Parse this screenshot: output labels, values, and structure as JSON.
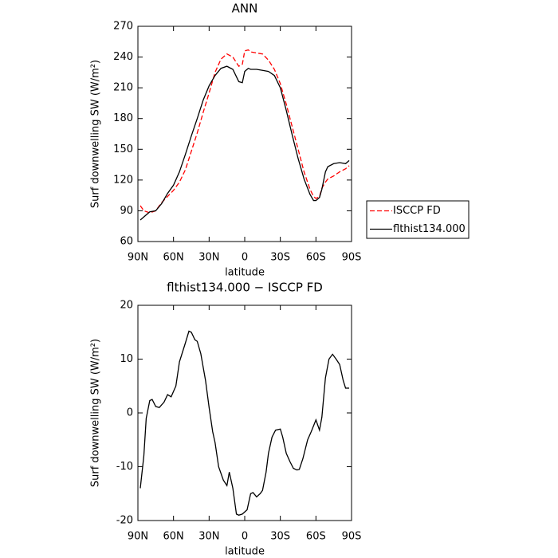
{
  "chart_data": [
    {
      "type": "line",
      "title": "ANN",
      "xlabel": "latitude",
      "ylabel": "Surf downwelling SW (W/m²)",
      "x": [
        88,
        85,
        80,
        75,
        70,
        65,
        60,
        55,
        50,
        45,
        40,
        35,
        30,
        25,
        20,
        15,
        10,
        5,
        2,
        0,
        -3,
        -5,
        -10,
        -15,
        -20,
        -25,
        -30,
        -35,
        -40,
        -45,
        -50,
        -55,
        -58,
        -60,
        -63,
        -65,
        -68,
        -70,
        -75,
        -80,
        -85,
        -88
      ],
      "series": [
        {
          "name": "ISCCP FD",
          "color": "#ff0000",
          "style": "dashed",
          "values": [
            95,
            90,
            88,
            90,
            98,
            104,
            110,
            118,
            130,
            148,
            166,
            186,
            205,
            225,
            238,
            243,
            240,
            231,
            233,
            246,
            247,
            245,
            244,
            243,
            237,
            228,
            214,
            194,
            172,
            150,
            128,
            111,
            104,
            102,
            104,
            112,
            118,
            121,
            124,
            128,
            131,
            134
          ]
        },
        {
          "name": "flthist134.000",
          "color": "#000000",
          "style": "solid",
          "values": [
            81,
            84,
            89,
            90,
            97,
            107,
            115,
            128,
            145,
            163,
            180,
            198,
            212,
            222,
            229,
            231,
            228,
            216,
            215,
            226,
            229,
            228,
            228,
            227,
            226,
            222,
            210,
            188,
            164,
            141,
            121,
            106,
            100,
            100,
            103,
            111,
            128,
            133,
            136,
            137,
            136,
            139
          ]
        }
      ],
      "xlim": [
        90,
        -90
      ],
      "xticks": [
        {
          "value": 90,
          "label": "90N"
        },
        {
          "value": 60,
          "label": "60N"
        },
        {
          "value": 30,
          "label": "30N"
        },
        0,
        {
          "value": -30,
          "label": "30S"
        },
        {
          "value": -60,
          "label": "60S"
        },
        {
          "value": -90,
          "label": "90S"
        }
      ],
      "ylim": [
        60,
        270
      ],
      "yticks": [
        60,
        90,
        120,
        150,
        180,
        210,
        240,
        270
      ],
      "legend": "outside-right"
    },
    {
      "type": "line",
      "title": "flthist134.000 − ISCCP FD",
      "xlabel": "latitude",
      "ylabel": "Surf downwelling SW (W/m²)",
      "x": [
        88,
        85,
        83,
        80,
        78,
        75,
        72,
        68,
        65,
        62,
        58,
        55,
        50,
        47,
        45,
        42,
        40,
        37,
        33,
        30,
        27,
        25,
        22,
        18,
        15,
        13,
        10,
        7,
        5,
        2,
        -2,
        -5,
        -7,
        -10,
        -13,
        -15,
        -18,
        -20,
        -23,
        -26,
        -30,
        -32,
        -35,
        -38,
        -41,
        -44,
        -46,
        -49,
        -53,
        -56,
        -60,
        -63,
        -65,
        -68,
        -71,
        -74,
        -77,
        -80,
        -83,
        -85,
        -88
      ],
      "values": [
        -14,
        -8,
        -1,
        2.3,
        2.5,
        1.2,
        1,
        2,
        3.4,
        3,
        5,
        9.5,
        13,
        15.2,
        15,
        13.6,
        13.3,
        11,
        6,
        1,
        -3.5,
        -5.5,
        -10,
        -12.5,
        -13.5,
        -11,
        -14,
        -18.8,
        -19,
        -18.8,
        -18,
        -15,
        -14.8,
        -15.6,
        -15,
        -14.4,
        -11,
        -7.5,
        -4.5,
        -3.2,
        -3,
        -4.5,
        -7.5,
        -9,
        -10.3,
        -10.6,
        -10.5,
        -8.5,
        -5,
        -3.5,
        -1.3,
        -3.2,
        -0.8,
        6.5,
        10,
        10.9,
        10,
        9,
        6,
        4.6,
        4.6
      ],
      "color": "#000000",
      "xlim": [
        90,
        -90
      ],
      "xticks": [
        {
          "value": 90,
          "label": "90N"
        },
        {
          "value": 60,
          "label": "60N"
        },
        {
          "value": 30,
          "label": "30N"
        },
        0,
        {
          "value": -30,
          "label": "30S"
        },
        {
          "value": -60,
          "label": "60S"
        },
        {
          "value": -90,
          "label": "90S"
        }
      ],
      "ylim": [
        -20,
        20
      ],
      "yticks": [
        -20,
        -10,
        0,
        10,
        20
      ]
    }
  ]
}
